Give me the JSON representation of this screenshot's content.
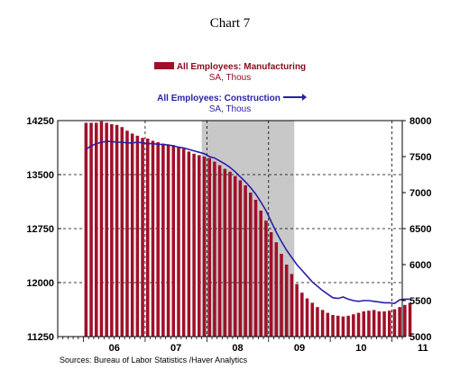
{
  "chart_data": {
    "type": "bar",
    "title": "Chart 7",
    "source": "Sources:  Bureau of Labor Statistics /Haver Analytics",
    "x_range": [
      "2005-08",
      "2011-03"
    ],
    "recession_band": [
      "2007-12",
      "2009-06"
    ],
    "x_tick_labels": [
      "06",
      "07",
      "08",
      "09",
      "10",
      "11"
    ],
    "x_dashed_gridlines": [
      "2007-01",
      "2008-01",
      "2009-01",
      "2011-01"
    ],
    "series": [
      {
        "name": "All Employees: Manufacturing",
        "unit": "SA, Thous",
        "axis": "left",
        "render": "bar",
        "color": "#a01028",
        "ylim": [
          11250,
          14250
        ],
        "y_ticks": [
          11250,
          12000,
          12750,
          13500,
          14250
        ],
        "start": "2006-01",
        "values": [
          14220,
          14220,
          14220,
          14240,
          14220,
          14200,
          14190,
          14160,
          14110,
          14070,
          14040,
          14010,
          14000,
          13970,
          13950,
          13930,
          13920,
          13910,
          13890,
          13860,
          13820,
          13790,
          13770,
          13750,
          13730,
          13680,
          13630,
          13580,
          13540,
          13480,
          13420,
          13350,
          13250,
          13150,
          13000,
          12860,
          12700,
          12560,
          12400,
          12250,
          12120,
          11980,
          11860,
          11780,
          11720,
          11660,
          11620,
          11580,
          11550,
          11540,
          11530,
          11540,
          11560,
          11580,
          11600,
          11610,
          11620,
          11600,
          11600,
          11610,
          11630,
          11660,
          11690,
          11720
        ]
      },
      {
        "name": "All Employees: Construction",
        "unit": "SA, Thous",
        "axis": "right",
        "render": "line",
        "color": "#2a1fa8",
        "ylim": [
          5000,
          8000
        ],
        "y_ticks": [
          5000,
          5500,
          6000,
          6500,
          7000,
          7500,
          8000
        ],
        "start": "2006-01",
        "values": [
          7600,
          7650,
          7680,
          7700,
          7710,
          7710,
          7700,
          7700,
          7690,
          7690,
          7700,
          7690,
          7680,
          7680,
          7670,
          7670,
          7660,
          7650,
          7630,
          7620,
          7600,
          7580,
          7560,
          7540,
          7500,
          7480,
          7440,
          7400,
          7350,
          7290,
          7220,
          7150,
          7070,
          6980,
          6870,
          6750,
          6600,
          6450,
          6320,
          6200,
          6100,
          6000,
          5920,
          5840,
          5760,
          5700,
          5640,
          5590,
          5540,
          5530,
          5550,
          5520,
          5500,
          5490,
          5500,
          5500,
          5490,
          5480,
          5470,
          5470,
          5460,
          5510,
          5520,
          5520
        ]
      }
    ]
  }
}
